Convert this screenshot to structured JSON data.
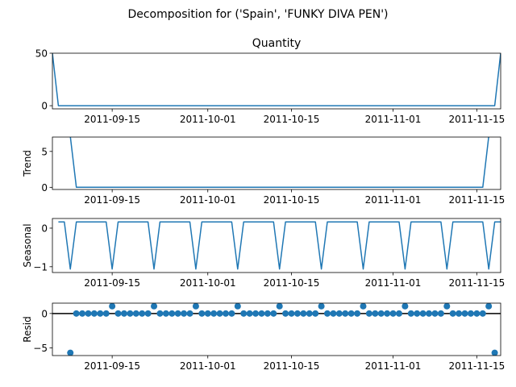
{
  "figure": {
    "title": "Decomposition for ('Spain', 'FUNKY DIVA PEN')"
  },
  "chart_data": [
    {
      "type": "line",
      "title": "Quantity",
      "ylabel": "",
      "x_dates": [
        "2011-09-05",
        "2011-09-06",
        "2011-11-18",
        "2011-11-19"
      ],
      "ylim": [
        -3,
        50
      ],
      "yticks": [
        0,
        50
      ],
      "xticks": [
        "2011-09-15",
        "2011-10-01",
        "2011-10-15",
        "2011-11-01",
        "2011-11-15"
      ],
      "x_range": [
        "2011-09-05",
        "2011-11-19"
      ],
      "series": [
        {
          "values": [
            50,
            0,
            0,
            50
          ],
          "color": "#1f77b4"
        }
      ]
    },
    {
      "type": "line",
      "title": "",
      "ylabel": "Trend",
      "x_dates": [
        "2011-09-08",
        "2011-09-09",
        "2011-11-16",
        "2011-11-17"
      ],
      "ylim": [
        -0.3,
        7
      ],
      "yticks": [
        0,
        5
      ],
      "xticks": [
        "2011-09-15",
        "2011-10-01",
        "2011-10-15",
        "2011-11-01",
        "2011-11-15"
      ],
      "x_range": [
        "2011-09-05",
        "2011-11-19"
      ],
      "series": [
        {
          "values": [
            7.1,
            0,
            0,
            7.1
          ],
          "color": "#1f77b4"
        }
      ]
    },
    {
      "type": "line",
      "title": "",
      "ylabel": "Seasonal",
      "period_days": 7,
      "pattern": [
        0.16,
        0.16,
        -1.06,
        0.16,
        0.16,
        0.16,
        0.16
      ],
      "pattern_start_date": "2011-09-06",
      "ylim": [
        -1.15,
        0.25
      ],
      "yticks": [
        0,
        -1
      ],
      "xticks": [
        "2011-09-15",
        "2011-10-01",
        "2011-10-15",
        "2011-11-01",
        "2011-11-15"
      ],
      "x_range": [
        "2011-09-05",
        "2011-11-19"
      ],
      "series": [
        {
          "color": "#1f77b4"
        }
      ]
    },
    {
      "type": "scatter",
      "title": "",
      "ylabel": "Resid",
      "first_date": "2011-09-08",
      "last_date": "2011-11-18",
      "base_value": 0,
      "spike_value": 1.06,
      "spike_every_days": 7,
      "first_spike_date": "2011-09-15",
      "end_values": [
        {
          "date": "2011-09-08",
          "value": -5.7
        },
        {
          "date": "2011-11-18",
          "value": -5.7
        }
      ],
      "ylim": [
        -6.1,
        1.5
      ],
      "yticks": [
        0,
        -5
      ],
      "zero_line": true,
      "xticks": [
        "2011-09-15",
        "2011-10-01",
        "2011-10-15",
        "2011-11-01",
        "2011-11-15"
      ],
      "x_range": [
        "2011-09-05",
        "2011-11-19"
      ],
      "series": [
        {
          "color": "#1f77b4"
        }
      ]
    }
  ]
}
